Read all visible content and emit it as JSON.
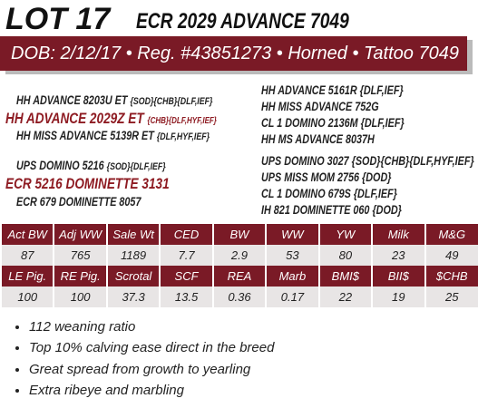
{
  "header": {
    "lot": "LOT 17",
    "name": "ECR 2029 ADVANCE 7049",
    "banner": "DOB: 2/12/17 • Reg. #43851273 • Horned • Tattoo 7049"
  },
  "pedigree": {
    "left": [
      {
        "name": "HH ADVANCE 8203U ET",
        "tags": "{SOD}{CHB}{DLF,IEF}"
      },
      {
        "name": "HH ADVANCE 2029Z ET",
        "tags": "{CHB}{DLF,HYF,IEF}"
      },
      {
        "name": "HH MISS ADVANCE 5139R ET",
        "tags": "{DLF,HYF,IEF}"
      },
      {
        "name": "UPS DOMINO 5216",
        "tags": "{SOD}{DLF,IEF}"
      },
      {
        "name": "ECR 5216 DOMINETTE 3131"
      },
      {
        "name": "ECR 679 DOMINETTE 8057"
      }
    ],
    "right": [
      {
        "name": "HH ADVANCE 5161R",
        "tags": "{DLF,IEF}"
      },
      {
        "name": "HH MISS ADVANCE 752G"
      },
      {
        "name": "CL 1 DOMINO 2136M",
        "tags": "{DLF,IEF}"
      },
      {
        "name": "HH MS ADVANCE 8037H"
      },
      {
        "name": "UPS DOMINO 3027",
        "tags": "{SOD}{CHB}{DLF,HYF,IEF}"
      },
      {
        "name": "UPS MISS MOM 2756",
        "tags": "{DOD}"
      },
      {
        "name": "CL 1 DOMINO 679S",
        "tags": "{DLF,IEF}"
      },
      {
        "name": "IH 821 DOMINETTE 060",
        "tags": "{DOD}"
      }
    ]
  },
  "tables": [
    {
      "headers": [
        "Act BW",
        "Adj WW",
        "Sale Wt",
        "CED",
        "BW",
        "WW",
        "YW",
        "Milk",
        "M&G"
      ],
      "values": [
        "87",
        "765",
        "1189",
        "7.7",
        "2.9",
        "53",
        "80",
        "23",
        "49"
      ]
    },
    {
      "headers": [
        "LE Pig.",
        "RE Pig.",
        "Scrotal",
        "SCF",
        "REA",
        "Marb",
        "BMI$",
        "BII$",
        "$CHB"
      ],
      "values": [
        "100",
        "100",
        "37.3",
        "13.5",
        "0.36",
        "0.17",
        "22",
        "19",
        "25"
      ]
    }
  ],
  "notes": [
    "112 weaning ratio",
    "Top 10% calving ease direct in the breed",
    "Great spread from growth to yearling",
    "Extra ribeye and marbling"
  ]
}
